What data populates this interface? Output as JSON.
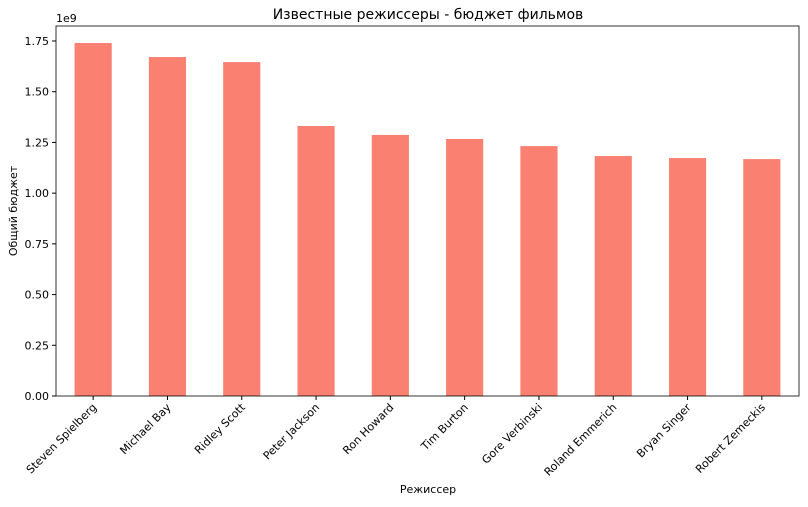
{
  "chart_data": {
    "type": "bar",
    "title": "Известные режиссеры - бюджет фильмов",
    "x_label": "Режиссер",
    "y_label": "Общий бюджет",
    "y_offset_label": "1e9",
    "categories": [
      "Steven Spielberg",
      "Michael Bay",
      "Ridley Scott",
      "Peter Jackson",
      "Ron Howard",
      "Tim Burton",
      "Gore Verbinski",
      "Roland Emmerich",
      "Bryan Singer",
      "Robert Zemeckis"
    ],
    "values": [
      1.74,
      1.671,
      1.646,
      1.331,
      1.287,
      1.267,
      1.232,
      1.183,
      1.173,
      1.168
    ],
    "color": "#fa8072",
    "ylim": [
      0,
      1.824
    ],
    "yticks": [
      {
        "value": 0,
        "label": "0.00"
      },
      {
        "value": 0.25,
        "label": "0.25"
      },
      {
        "value": 0.5,
        "label": "0.50"
      },
      {
        "value": 0.75,
        "label": "0.75"
      },
      {
        "value": 1,
        "label": "1.00"
      },
      {
        "value": 1.25,
        "label": "1.25"
      },
      {
        "value": 1.5,
        "label": "1.50"
      },
      {
        "value": 1.75,
        "label": "1.75"
      }
    ],
    "grid": false
  }
}
